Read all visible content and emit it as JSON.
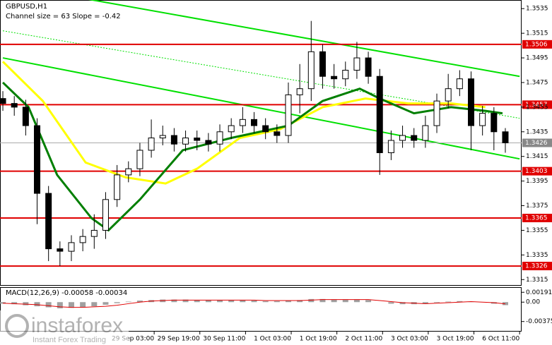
{
  "chart_data": [
    {
      "type": "candlestick",
      "title": "GBPUSD,H1",
      "subtitle": "Channel size = 63 Slope = -0.42",
      "x": [
        0,
        4,
        8,
        12,
        16,
        20,
        24,
        28,
        32,
        36,
        40,
        44,
        48,
        52,
        56,
        60,
        64,
        68,
        72,
        76,
        80,
        84,
        88,
        92,
        96,
        100,
        104,
        108,
        112,
        116,
        120,
        124,
        128,
        132,
        136,
        140,
        144,
        148,
        152,
        156,
        160,
        164,
        168,
        172,
        176
      ],
      "open": [
        1.3462,
        1.3458,
        1.3455,
        1.344,
        1.3385,
        1.334,
        1.3338,
        1.3345,
        1.335,
        1.3355,
        1.338,
        1.34,
        1.3405,
        1.342,
        1.343,
        1.3432,
        1.3425,
        1.343,
        1.3428,
        1.3425,
        1.3435,
        1.344,
        1.3445,
        1.344,
        1.3435,
        1.3432,
        1.3465,
        1.347,
        1.35,
        1.348,
        1.3478,
        1.3485,
        1.3495,
        1.348,
        1.3418,
        1.3428,
        1.3432,
        1.3428,
        1.344,
        1.346,
        1.347,
        1.3478,
        1.344,
        1.345,
        1.3435
      ],
      "high": [
        1.3468,
        1.3464,
        1.3461,
        1.3446,
        1.3391,
        1.3346,
        1.3351,
        1.3356,
        1.3368,
        1.3386,
        1.3408,
        1.3411,
        1.3426,
        1.3445,
        1.344,
        1.3438,
        1.3436,
        1.3436,
        1.3434,
        1.3441,
        1.3446,
        1.3455,
        1.3451,
        1.3446,
        1.3441,
        1.3475,
        1.349,
        1.3525,
        1.3506,
        1.349,
        1.3492,
        1.3508,
        1.35,
        1.3486,
        1.3436,
        1.344,
        1.3438,
        1.3448,
        1.3466,
        1.3482,
        1.3485,
        1.3484,
        1.3456,
        1.3455,
        1.3438
      ],
      "low": [
        1.3452,
        1.3448,
        1.3432,
        1.336,
        1.333,
        1.3326,
        1.333,
        1.3338,
        1.334,
        1.3348,
        1.3374,
        1.3394,
        1.3399,
        1.3414,
        1.3424,
        1.3419,
        1.3419,
        1.342,
        1.3419,
        1.3419,
        1.3429,
        1.3434,
        1.3434,
        1.3429,
        1.3426,
        1.3426,
        1.345,
        1.346,
        1.347,
        1.347,
        1.3472,
        1.3478,
        1.3474,
        1.34,
        1.3412,
        1.3422,
        1.3422,
        1.3422,
        1.3434,
        1.3454,
        1.3464,
        1.342,
        1.3432,
        1.342,
        1.3418
      ],
      "close": [
        1.3458,
        1.3455,
        1.344,
        1.3385,
        1.334,
        1.3338,
        1.3345,
        1.335,
        1.3355,
        1.338,
        1.34,
        1.3405,
        1.342,
        1.343,
        1.3432,
        1.3425,
        1.343,
        1.3428,
        1.3425,
        1.3435,
        1.344,
        1.3445,
        1.344,
        1.3435,
        1.3432,
        1.3465,
        1.347,
        1.35,
        1.348,
        1.3478,
        1.3485,
        1.3495,
        1.348,
        1.3418,
        1.3428,
        1.3432,
        1.3428,
        1.344,
        1.346,
        1.347,
        1.3478,
        1.344,
        1.345,
        1.3435,
        1.3426
      ],
      "color": "#000000",
      "lines": [
        {
          "color": "#ffff00",
          "x": [
            0,
            14,
            29,
            43,
            57,
            68,
            83,
            97,
            112,
            127,
            142,
            157,
            169
          ],
          "values": [
            1.3492,
            1.346,
            1.341,
            1.3398,
            1.3393,
            1.3405,
            1.343,
            1.3437,
            1.3455,
            1.3462,
            1.3458,
            1.3458,
            1.3455
          ]
        },
        {
          "color": "#007f00",
          "x": [
            0,
            9,
            19,
            31,
            37,
            48,
            63,
            80,
            100,
            112,
            125,
            132,
            144,
            157,
            169,
            175
          ],
          "values": [
            1.3475,
            1.3455,
            1.34,
            1.3365,
            1.3355,
            1.338,
            1.342,
            1.343,
            1.344,
            1.346,
            1.347,
            1.3462,
            1.345,
            1.3455,
            1.3452,
            1.345
          ]
        }
      ],
      "channel": {
        "color": "#00e000",
        "x": [
          0,
          181
        ],
        "upper": [
          1.3555,
          1.348
        ],
        "middle": [
          1.3517,
          1.3446
        ],
        "lower": [
          1.3495,
          1.3413
        ]
      },
      "levels": [
        1.3506,
        1.3457,
        1.3403,
        1.3365,
        1.3326
      ],
      "level_color": "#e00000",
      "last_price": 1.3426,
      "xlim": [
        -1,
        181.7
      ],
      "xticks": [
        {
          "value": 53,
          "label": "29 Sep 03:00"
        },
        {
          "value": 69,
          "label": "29 Sep 19:00"
        },
        {
          "value": 85,
          "label": "30 Sep 11:00"
        },
        {
          "value": 101,
          "label": "1 Oct 03:00"
        },
        {
          "value": 117,
          "label": "1 Oct 19:00"
        },
        {
          "value": 133,
          "label": "2 Oct 11:00"
        },
        {
          "value": 149,
          "label": "3 Oct 03:00"
        },
        {
          "value": 165,
          "label": "3 Oct 19:00"
        },
        {
          "value": 181,
          "label": "6 Oct 11:00"
        }
      ],
      "ylim": [
        1.331,
        1.3542
      ],
      "yticks": [
        1.3535,
        1.3515,
        1.3495,
        1.3475,
        1.3455,
        1.3435,
        1.3415,
        1.3395,
        1.3375,
        1.3355,
        1.3335,
        1.3315
      ]
    },
    {
      "type": "macd",
      "title": "MACD(12,26,9) -0.00058 -0.00034",
      "x": [
        0,
        4,
        8,
        12,
        16,
        20,
        24,
        28,
        32,
        36,
        40,
        44,
        48,
        52,
        56,
        60,
        64,
        68,
        72,
        76,
        80,
        84,
        88,
        92,
        96,
        100,
        104,
        108,
        112,
        116,
        120,
        124,
        128,
        132,
        136,
        140,
        144,
        148,
        152,
        156,
        160,
        164,
        168,
        172,
        176
      ],
      "values": [
        -0.0003,
        -0.0004,
        -0.0006,
        -0.0008,
        -0.001,
        -0.0012,
        -0.0011,
        -0.001,
        -0.0008,
        -0.0005,
        -0.0002,
        0.0001,
        0.0003,
        0.0004,
        0.0005,
        0.0005,
        0.0005,
        0.0004,
        0.0004,
        0.0004,
        0.0004,
        0.0004,
        0.0003,
        0.0002,
        0.0002,
        0.0003,
        0.0004,
        0.0006,
        0.0006,
        0.0005,
        0.0005,
        0.0005,
        0.0004,
        0.0,
        -0.0003,
        -0.0004,
        -0.0004,
        -0.0003,
        -0.0001,
        0.0001,
        0.0002,
        0.0001,
        0.0,
        -0.0003,
        -0.00058
      ],
      "signal": [
        -0.0002,
        -0.0003,
        -0.0004,
        -0.0005,
        -0.0007,
        -0.0009,
        -0.001,
        -0.001,
        -0.0009,
        -0.0008,
        -0.0006,
        -0.0003,
        0.0,
        0.0002,
        0.0003,
        0.0004,
        0.0004,
        0.0004,
        0.0004,
        0.0004,
        0.0004,
        0.0004,
        0.0004,
        0.0003,
        0.0003,
        0.0003,
        0.0003,
        0.0004,
        0.0005,
        0.0005,
        0.0005,
        0.0005,
        0.0005,
        0.0003,
        0.0001,
        -0.0001,
        -0.0002,
        -0.0003,
        -0.0002,
        -0.0001,
        0.0,
        0.0001,
        0.0,
        -0.0001,
        -0.00034
      ],
      "color": "#a0a0a0",
      "signal_color": "#e00000",
      "xlim": [
        -1,
        181.7
      ],
      "ylim": [
        -0.0057,
        0.0029
      ],
      "yticks": [
        0.00191,
        {
          "value": 0,
          "label": "0.00"
        },
        -0.00375
      ]
    }
  ],
  "watermark": {
    "brand": "instaforex",
    "tagline": "Instant Forex Trading"
  }
}
